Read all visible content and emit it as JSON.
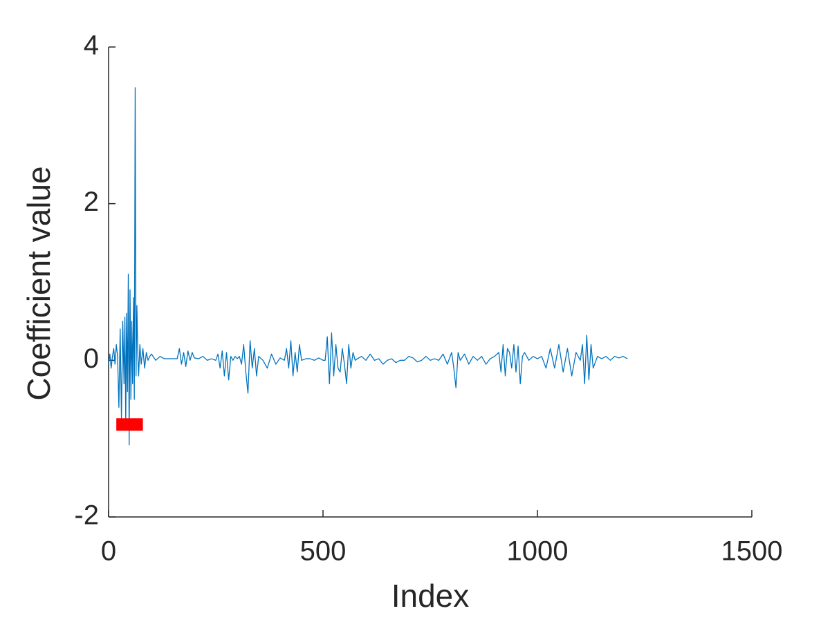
{
  "chart_data": {
    "type": "line",
    "xlabel": "Index",
    "ylabel": "Coefficient value",
    "xlim": [
      0,
      1500
    ],
    "ylim": [
      -2,
      4
    ],
    "xticks": [
      0,
      500,
      1000,
      1500
    ],
    "yticks": [
      -2,
      0,
      2,
      4
    ],
    "grid": false,
    "series": [
      {
        "color": "#0072bd",
        "x": [
          0,
          3,
          6,
          9,
          12,
          15,
          18,
          21,
          24,
          27,
          30,
          33,
          36,
          38,
          40,
          42,
          44,
          46,
          48,
          50,
          52,
          54,
          56,
          58,
          60,
          62,
          64,
          66,
          68,
          70,
          73,
          76,
          80,
          84,
          88,
          92,
          96,
          100,
          110,
          120,
          130,
          140,
          150,
          160,
          165,
          170,
          175,
          180,
          185,
          190,
          195,
          200,
          210,
          220,
          230,
          240,
          250,
          255,
          260,
          265,
          270,
          275,
          280,
          285,
          290,
          295,
          300,
          305,
          310,
          315,
          320,
          325,
          330,
          335,
          340,
          345,
          350,
          360,
          370,
          380,
          390,
          400,
          410,
          415,
          420,
          425,
          430,
          435,
          440,
          445,
          450,
          460,
          470,
          480,
          490,
          500,
          505,
          510,
          515,
          520,
          525,
          530,
          535,
          540,
          545,
          550,
          555,
          560,
          565,
          570,
          575,
          580,
          590,
          600,
          610,
          620,
          630,
          640,
          650,
          660,
          670,
          680,
          690,
          700,
          710,
          720,
          730,
          740,
          750,
          760,
          770,
          780,
          790,
          800,
          805,
          810,
          815,
          820,
          830,
          840,
          850,
          860,
          870,
          880,
          890,
          900,
          910,
          915,
          920,
          925,
          930,
          935,
          940,
          945,
          950,
          955,
          960,
          965,
          970,
          980,
          990,
          1000,
          1010,
          1020,
          1030,
          1040,
          1050,
          1060,
          1070,
          1080,
          1090,
          1100,
          1105,
          1110,
          1115,
          1120,
          1125,
          1130,
          1140,
          1150,
          1160,
          1170,
          1180,
          1190,
          1200,
          1210
        ],
        "values": [
          -0.05,
          0.08,
          -0.1,
          0.05,
          0.15,
          -0.05,
          0.2,
          0.05,
          -0.6,
          0.4,
          -0.75,
          0.5,
          -0.3,
          0.55,
          -0.8,
          0.6,
          -0.4,
          1.1,
          -1.08,
          0.9,
          -0.5,
          0.5,
          -0.3,
          0.8,
          -0.5,
          3.48,
          -0.2,
          0.7,
          0.1,
          -0.2,
          0.2,
          -0.05,
          0.15,
          -0.1,
          0.1,
          0.0,
          0.05,
          0.08,
          0.0,
          0.05,
          0.02,
          0.02,
          0.02,
          0.02,
          0.15,
          -0.05,
          0.1,
          -0.08,
          0.12,
          0.0,
          0.1,
          0.03,
          0.02,
          0.05,
          0.0,
          0.02,
          0.0,
          0.08,
          -0.1,
          0.12,
          -0.2,
          0.1,
          -0.25,
          0.05,
          0.0,
          0.05,
          0.02,
          0.05,
          -0.05,
          0.2,
          -0.15,
          -0.42,
          0.25,
          -0.1,
          0.15,
          -0.2,
          0.05,
          0.0,
          -0.1,
          0.08,
          -0.05,
          0.03,
          0.0,
          0.15,
          -0.1,
          0.25,
          -0.2,
          0.1,
          -0.15,
          0.2,
          0.0,
          0.02,
          0.02,
          0.0,
          0.03,
          0.0,
          0.0,
          0.3,
          -0.3,
          0.35,
          -0.2,
          0.2,
          -0.1,
          -0.15,
          0.15,
          -0.05,
          -0.3,
          0.2,
          -0.1,
          0.1,
          0.0,
          0.02,
          0.05,
          0.0,
          0.08,
          0.0,
          0.02,
          -0.05,
          0.0,
          0.02,
          -0.03,
          0.0,
          0.0,
          0.05,
          0.03,
          -0.02,
          0.0,
          0.05,
          0.0,
          0.02,
          0.0,
          0.08,
          -0.05,
          0.1,
          -0.1,
          -0.35,
          0.1,
          0.0,
          0.08,
          -0.05,
          0.05,
          0.0,
          0.05,
          -0.05,
          0.02,
          0.05,
          0.1,
          -0.15,
          0.2,
          -0.2,
          0.15,
          0.1,
          -0.1,
          0.2,
          -0.15,
          0.18,
          -0.3,
          0.05,
          0.1,
          0.0,
          0.05,
          0.02,
          0.05,
          -0.1,
          0.15,
          -0.1,
          0.2,
          -0.15,
          0.15,
          -0.2,
          0.1,
          0.0,
          0.2,
          -0.3,
          0.32,
          -0.25,
          0.2,
          -0.1,
          0.05,
          0.02,
          0.05,
          0.0,
          0.05,
          0.03,
          0.05,
          0.02
        ]
      },
      {
        "color": "#ff0000",
        "x": [
          18,
          80
        ],
        "values": [
          -0.82,
          -0.82
        ]
      }
    ]
  }
}
